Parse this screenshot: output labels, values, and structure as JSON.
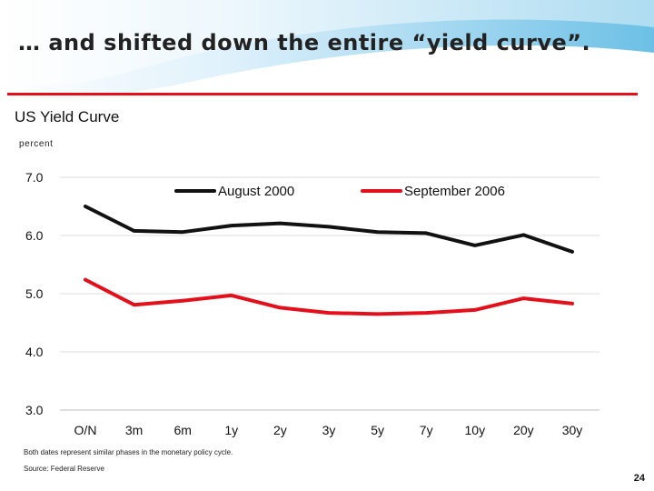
{
  "slide": {
    "title": "… and shifted down the entire “yield curve”.",
    "page_number": "24",
    "note": "Both dates represent similar phases in the monetary policy cycle.",
    "source": "Source: Federal Reserve"
  },
  "colors": {
    "august": "#111111",
    "september": "#e3101c",
    "rule": "#e3101c",
    "grid": "#dcdcdc",
    "background_swoosh": "#6cc0e6"
  },
  "chart_data": {
    "type": "line",
    "title": "US Yield Curve",
    "ylabel": "percent",
    "xlabel": "",
    "categories": [
      "O/N",
      "3m",
      "6m",
      "1y",
      "2y",
      "3y",
      "5y",
      "7y",
      "10y",
      "20y",
      "30y"
    ],
    "ylim": [
      3.0,
      7.0
    ],
    "yticks": [
      "7.0",
      "6.0",
      "5.0",
      "4.0",
      "3.0"
    ],
    "grid": true,
    "legend": "top",
    "series": [
      {
        "name": "August 2000",
        "color": "#111111",
        "values": [
          6.5,
          6.08,
          6.06,
          6.17,
          6.21,
          6.15,
          6.06,
          6.04,
          5.83,
          6.01,
          5.72
        ]
      },
      {
        "name": "September 2006",
        "color": "#e3101c",
        "values": [
          5.24,
          4.81,
          4.88,
          4.97,
          4.76,
          4.67,
          4.65,
          4.67,
          4.72,
          4.92,
          4.83
        ]
      }
    ]
  }
}
